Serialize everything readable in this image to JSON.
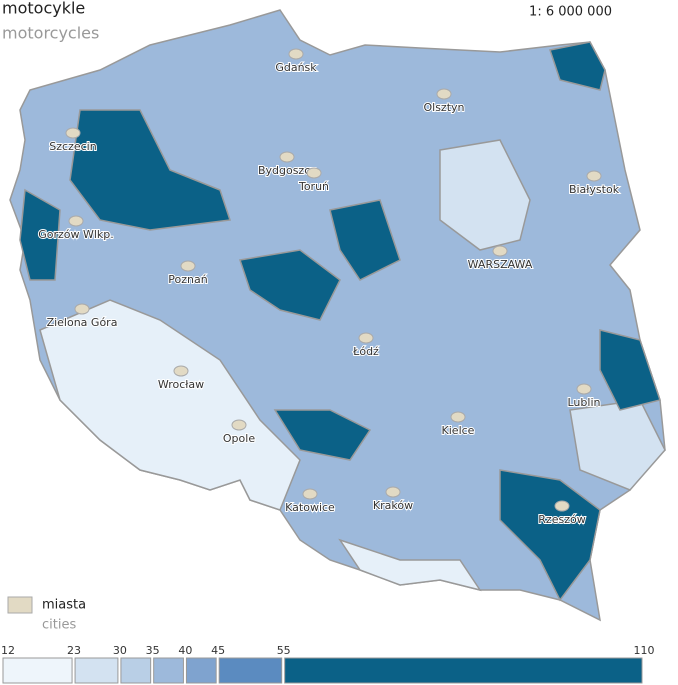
{
  "header": {
    "title": "motocykle",
    "subtitle": "motorcycles",
    "scale": "1: 6 000 000"
  },
  "cities": [
    "Gdańsk",
    "Olsztyn",
    "Szczecin",
    "Bydgoszcz",
    "Toruń",
    "Białystok",
    "Gorzów Wlkp.",
    "WARSZAWA",
    "Poznań",
    "Zielona Góra",
    "Łódź",
    "Wrocław",
    "Lublin",
    "Opole",
    "Kielce",
    "Katowice",
    "Kraków",
    "Rzeszów"
  ],
  "legend": {
    "city_label": "miasta",
    "city_label_en": "cities",
    "city_color": "#e2dac4",
    "bins": [
      12,
      23,
      30,
      35,
      40,
      45,
      55,
      110
    ],
    "colors": [
      "#eef5fb",
      "#d3e2f1",
      "#b9cfe6",
      "#9db9db",
      "#7fa3cf",
      "#5b8bc0",
      "#0b6187"
    ]
  }
}
